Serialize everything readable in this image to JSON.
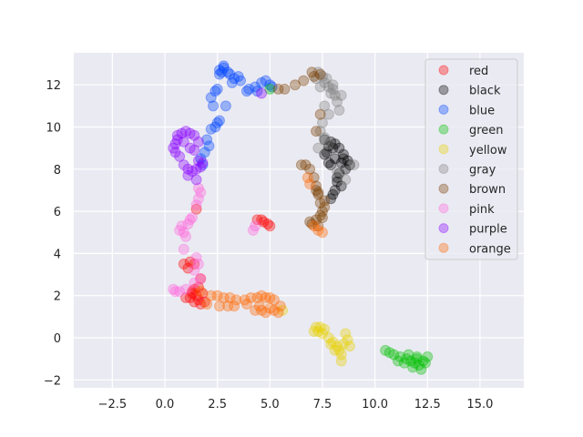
{
  "chart_data": {
    "type": "scatter",
    "title": "",
    "xlabel": "",
    "ylabel": "",
    "xlim": [
      -4.3,
      17.0
    ],
    "ylim": [
      -2.4,
      13.5
    ],
    "xticks": [
      -2.5,
      0.0,
      2.5,
      5.0,
      7.5,
      10.0,
      12.5,
      15.0
    ],
    "xtick_labels": [
      "−2.5",
      "0.0",
      "2.5",
      "5.0",
      "7.5",
      "10.0",
      "12.5",
      "15.0"
    ],
    "yticks": [
      -2,
      0,
      2,
      4,
      6,
      8,
      10,
      12
    ],
    "ytick_labels": [
      "−2",
      "0",
      "2",
      "4",
      "6",
      "8",
      "10",
      "12"
    ],
    "grid": true,
    "style": "seaborn-darkgrid",
    "background": "#eaeaf2",
    "marker_alpha": 0.35,
    "legend_position": "upper right",
    "series": [
      {
        "name": "red",
        "color": "#ff0000",
        "points": [
          [
            1.3,
            2.2
          ],
          [
            1.5,
            2.0
          ],
          [
            1.6,
            1.8
          ],
          [
            1.7,
            1.6
          ],
          [
            1.4,
            1.7
          ],
          [
            1.2,
            1.9
          ],
          [
            1.8,
            2.1
          ],
          [
            1.6,
            2.4
          ],
          [
            1.4,
            2.3
          ],
          [
            1.9,
            1.7
          ],
          [
            1.0,
            1.9
          ],
          [
            1.1,
            3.3
          ],
          [
            0.9,
            3.5
          ],
          [
            1.2,
            3.6
          ],
          [
            1.4,
            3.5
          ],
          [
            4.7,
            5.5
          ],
          [
            4.9,
            5.4
          ],
          [
            5.0,
            5.3
          ],
          [
            4.6,
            5.6
          ],
          [
            4.4,
            5.6
          ],
          [
            1.5,
            6.1
          ],
          [
            1.7,
            2.8
          ],
          [
            1.3,
            2.1
          ]
        ]
      },
      {
        "name": "black",
        "color": "#000000",
        "points": [
          [
            7.8,
            9.1
          ],
          [
            7.9,
            9.3
          ],
          [
            8.0,
            9.0
          ],
          [
            7.7,
            8.8
          ],
          [
            7.6,
            8.7
          ],
          [
            8.1,
            9.2
          ],
          [
            8.3,
            9.0
          ],
          [
            8.5,
            8.7
          ],
          [
            8.4,
            8.3
          ],
          [
            8.6,
            8.0
          ],
          [
            8.7,
            8.4
          ],
          [
            8.5,
            8.5
          ],
          [
            8.3,
            7.8
          ],
          [
            8.2,
            7.4
          ],
          [
            8.1,
            7.0
          ],
          [
            8.0,
            6.8
          ],
          [
            7.9,
            6.6
          ],
          [
            8.2,
            7.6
          ],
          [
            8.4,
            7.2
          ],
          [
            7.8,
            8.3
          ],
          [
            7.6,
            9.4
          ],
          [
            8.8,
            8.2
          ],
          [
            8.1,
            8.5
          ],
          [
            7.9,
            8.2
          ]
        ]
      },
      {
        "name": "blue",
        "color": "#0044ff",
        "points": [
          [
            2.6,
            12.7
          ],
          [
            2.8,
            12.8
          ],
          [
            2.7,
            12.6
          ],
          [
            3.1,
            12.5
          ],
          [
            3.3,
            12.3
          ],
          [
            3.5,
            12.4
          ],
          [
            3.2,
            12.1
          ],
          [
            3.6,
            12.2
          ],
          [
            2.6,
            12.5
          ],
          [
            3.0,
            12.6
          ],
          [
            2.4,
            11.7
          ],
          [
            2.5,
            11.8
          ],
          [
            2.2,
            11.4
          ],
          [
            2.3,
            11.0
          ],
          [
            2.9,
            11.0
          ],
          [
            4.6,
            12.1
          ],
          [
            4.8,
            12.2
          ],
          [
            5.0,
            12.0
          ],
          [
            4.4,
            11.7
          ],
          [
            5.1,
            11.9
          ],
          [
            4.3,
            11.9
          ],
          [
            4.0,
            11.8
          ],
          [
            2.5,
            10.2
          ],
          [
            2.4,
            10.0
          ],
          [
            2.2,
            9.9
          ],
          [
            2.0,
            9.4
          ],
          [
            2.1,
            9.1
          ],
          [
            1.9,
            8.8
          ],
          [
            1.7,
            8.5
          ],
          [
            1.8,
            8.2
          ],
          [
            3.9,
            11.7
          ],
          [
            2.6,
            10.3
          ],
          [
            2.8,
            12.9
          ]
        ]
      },
      {
        "name": "green",
        "color": "#00c000",
        "points": [
          [
            10.5,
            -0.6
          ],
          [
            10.7,
            -0.7
          ],
          [
            10.9,
            -0.8
          ],
          [
            11.2,
            -0.9
          ],
          [
            11.5,
            -1.0
          ],
          [
            11.7,
            -1.1
          ],
          [
            11.9,
            -1.2
          ],
          [
            12.1,
            -1.3
          ],
          [
            12.3,
            -1.1
          ],
          [
            12.0,
            -0.9
          ],
          [
            11.8,
            -1.4
          ],
          [
            12.2,
            -1.5
          ],
          [
            12.4,
            -1.2
          ],
          [
            11.4,
            -1.2
          ],
          [
            11.6,
            -0.8
          ],
          [
            12.5,
            -0.9
          ],
          [
            11.1,
            -1.1
          ],
          [
            12.0,
            -1.0
          ],
          [
            5.0,
            11.8
          ]
        ]
      },
      {
        "name": "yellow",
        "color": "#e8d000",
        "points": [
          [
            7.2,
            0.5
          ],
          [
            7.4,
            0.5
          ],
          [
            7.3,
            0.3
          ],
          [
            7.5,
            0.2
          ],
          [
            7.6,
            0.4
          ],
          [
            7.8,
            0.0
          ],
          [
            8.0,
            -0.2
          ],
          [
            8.2,
            -0.4
          ],
          [
            8.3,
            -0.6
          ],
          [
            8.4,
            -0.8
          ],
          [
            8.4,
            -1.1
          ],
          [
            8.5,
            -0.3
          ],
          [
            8.7,
            -0.1
          ],
          [
            8.8,
            -0.4
          ],
          [
            8.1,
            -0.6
          ],
          [
            7.9,
            -0.3
          ],
          [
            8.6,
            0.2
          ],
          [
            7.1,
            0.3
          ],
          [
            5.6,
            1.3
          ]
        ]
      },
      {
        "name": "gray",
        "color": "#808080",
        "points": [
          [
            7.3,
            12.6
          ],
          [
            7.5,
            12.4
          ],
          [
            7.6,
            12.1
          ],
          [
            7.8,
            11.9
          ],
          [
            7.7,
            12.3
          ],
          [
            8.0,
            11.8
          ],
          [
            8.1,
            11.5
          ],
          [
            8.2,
            11.2
          ],
          [
            7.9,
            11.6
          ],
          [
            7.4,
            11.9
          ],
          [
            7.6,
            11.0
          ],
          [
            7.8,
            10.6
          ],
          [
            7.5,
            10.2
          ],
          [
            7.4,
            9.8
          ],
          [
            7.6,
            9.5
          ],
          [
            8.3,
            10.8
          ],
          [
            8.0,
            12.0
          ],
          [
            7.2,
            12.3
          ],
          [
            8.4,
            11.5
          ],
          [
            9.0,
            8.2
          ],
          [
            8.6,
            7.5
          ],
          [
            7.8,
            9.2
          ],
          [
            8.2,
            7.9
          ],
          [
            7.3,
            9.0
          ]
        ]
      },
      {
        "name": "brown",
        "color": "#7a3f00",
        "points": [
          [
            5.7,
            11.8
          ],
          [
            5.4,
            11.8
          ],
          [
            6.2,
            12.0
          ],
          [
            6.6,
            12.2
          ],
          [
            7.0,
            12.6
          ],
          [
            7.1,
            12.4
          ],
          [
            7.4,
            12.5
          ],
          [
            6.7,
            8.2
          ],
          [
            6.9,
            8.0
          ],
          [
            7.1,
            7.6
          ],
          [
            7.2,
            7.2
          ],
          [
            7.3,
            6.8
          ],
          [
            7.4,
            6.4
          ],
          [
            7.5,
            6.0
          ],
          [
            7.4,
            5.8
          ],
          [
            7.2,
            5.6
          ],
          [
            7.0,
            5.4
          ],
          [
            6.9,
            5.5
          ],
          [
            7.5,
            5.7
          ],
          [
            7.6,
            6.5
          ],
          [
            7.3,
            6.9
          ],
          [
            7.2,
            7.0
          ],
          [
            7.6,
            6.2
          ],
          [
            6.5,
            8.2
          ],
          [
            7.4,
            10.6
          ],
          [
            7.2,
            9.8
          ],
          [
            7.3,
            5.3
          ]
        ]
      },
      {
        "name": "pink",
        "color": "#ff66dd",
        "points": [
          [
            1.6,
            7.1
          ],
          [
            1.7,
            6.9
          ],
          [
            1.6,
            6.6
          ],
          [
            1.5,
            6.3
          ],
          [
            1.2,
            5.6
          ],
          [
            1.1,
            5.4
          ],
          [
            0.8,
            5.3
          ],
          [
            0.7,
            5.1
          ],
          [
            0.9,
            5.0
          ],
          [
            1.0,
            4.8
          ],
          [
            1.3,
            5.7
          ],
          [
            0.9,
            4.2
          ],
          [
            1.5,
            3.8
          ],
          [
            1.6,
            3.5
          ],
          [
            1.4,
            3.2
          ],
          [
            1.7,
            2.8
          ],
          [
            0.5,
            2.2
          ],
          [
            0.4,
            2.3
          ],
          [
            0.7,
            2.2
          ],
          [
            4.2,
            5.1
          ],
          [
            4.3,
            5.3
          ],
          [
            1.0,
            2.3
          ],
          [
            1.4,
            2.6
          ]
        ]
      },
      {
        "name": "purple",
        "color": "#8a00ff",
        "points": [
          [
            0.6,
            9.6
          ],
          [
            0.8,
            9.7
          ],
          [
            1.0,
            9.8
          ],
          [
            1.2,
            9.7
          ],
          [
            1.4,
            9.6
          ],
          [
            0.5,
            9.2
          ],
          [
            0.4,
            9.0
          ],
          [
            0.5,
            8.8
          ],
          [
            0.7,
            8.6
          ],
          [
            0.9,
            8.2
          ],
          [
            1.1,
            8.0
          ],
          [
            1.3,
            7.9
          ],
          [
            1.5,
            8.0
          ],
          [
            1.7,
            8.1
          ],
          [
            1.8,
            8.3
          ],
          [
            1.6,
            8.4
          ],
          [
            1.2,
            9.0
          ],
          [
            1.4,
            8.9
          ],
          [
            1.6,
            9.3
          ],
          [
            0.9,
            9.3
          ],
          [
            1.1,
            7.7
          ],
          [
            4.6,
            11.6
          ],
          [
            1.5,
            7.5
          ],
          [
            0.6,
            9.4
          ]
        ]
      },
      {
        "name": "orange",
        "color": "#ff6600",
        "points": [
          [
            2.2,
            2.0
          ],
          [
            2.5,
            2.0
          ],
          [
            2.8,
            1.9
          ],
          [
            3.1,
            1.9
          ],
          [
            3.4,
            1.8
          ],
          [
            3.8,
            1.8
          ],
          [
            4.1,
            1.9
          ],
          [
            4.4,
            1.9
          ],
          [
            4.6,
            2.0
          ],
          [
            4.8,
            1.9
          ],
          [
            5.0,
            1.9
          ],
          [
            5.2,
            1.8
          ],
          [
            4.5,
            1.5
          ],
          [
            4.6,
            1.3
          ],
          [
            4.8,
            1.2
          ],
          [
            5.0,
            1.4
          ],
          [
            5.2,
            1.3
          ],
          [
            5.4,
            1.2
          ],
          [
            3.0,
            1.5
          ],
          [
            3.3,
            1.5
          ],
          [
            2.0,
            1.6
          ],
          [
            2.6,
            1.5
          ],
          [
            3.9,
            1.6
          ],
          [
            4.3,
            1.3
          ],
          [
            7.3,
            5.1
          ],
          [
            7.5,
            5.0
          ],
          [
            7.1,
            5.3
          ],
          [
            6.9,
            7.3
          ],
          [
            6.8,
            7.6
          ],
          [
            1.7,
            2.2
          ],
          [
            5.5,
            1.5
          ]
        ]
      }
    ]
  },
  "legend": {
    "items": [
      {
        "label": "red",
        "color": "#ff0000"
      },
      {
        "label": "black",
        "color": "#000000"
      },
      {
        "label": "blue",
        "color": "#0044ff"
      },
      {
        "label": "green",
        "color": "#00c000"
      },
      {
        "label": "yellow",
        "color": "#e8d000"
      },
      {
        "label": "gray",
        "color": "#808080"
      },
      {
        "label": "brown",
        "color": "#7a3f00"
      },
      {
        "label": "pink",
        "color": "#ff66dd"
      },
      {
        "label": "purple",
        "color": "#8a00ff"
      },
      {
        "label": "orange",
        "color": "#ff6600"
      }
    ]
  }
}
